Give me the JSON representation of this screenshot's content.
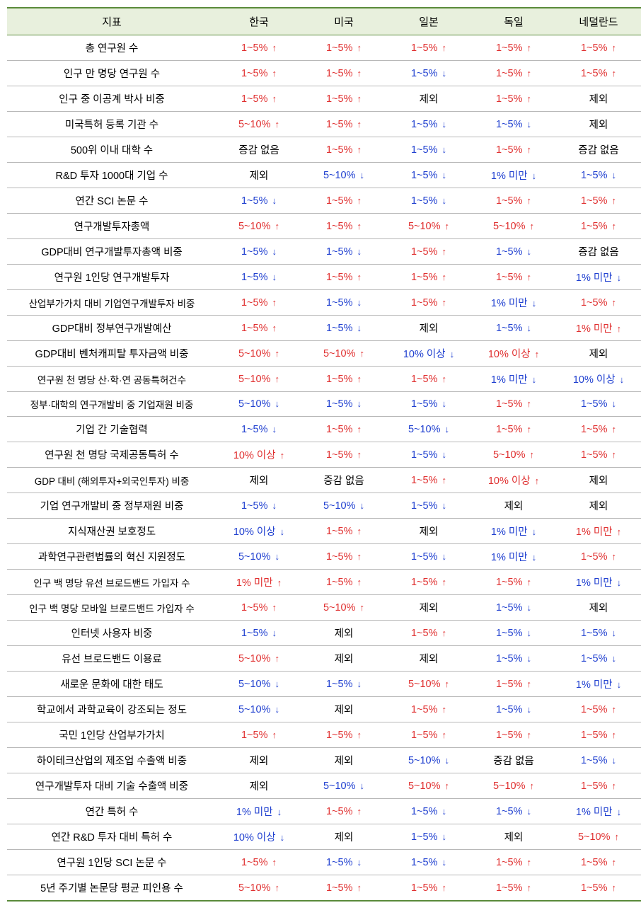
{
  "colors": {
    "header_bg": "#e8f0dd",
    "border_strong": "#5a8a3a",
    "border_row": "#b8b8b8",
    "up": "#e03030",
    "down": "#2040d0",
    "neutral": "#000000",
    "bg": "#ffffff"
  },
  "arrows": {
    "up": "↑",
    "down": "↓"
  },
  "headers": [
    "지표",
    "한국",
    "미국",
    "일본",
    "독일",
    "네덜란드"
  ],
  "rows": [
    {
      "label": "총 연구원 수",
      "cells": [
        {
          "t": "1~5%",
          "d": "up"
        },
        {
          "t": "1~5%",
          "d": "up"
        },
        {
          "t": "1~5%",
          "d": "up"
        },
        {
          "t": "1~5%",
          "d": "up"
        },
        {
          "t": "1~5%",
          "d": "up"
        }
      ]
    },
    {
      "label": "인구 만 명당 연구원 수",
      "cells": [
        {
          "t": "1~5%",
          "d": "up"
        },
        {
          "t": "1~5%",
          "d": "up"
        },
        {
          "t": "1~5%",
          "d": "down"
        },
        {
          "t": "1~5%",
          "d": "up"
        },
        {
          "t": "1~5%",
          "d": "up"
        }
      ]
    },
    {
      "label": "인구 중 이공계 박사 비중",
      "cells": [
        {
          "t": "1~5%",
          "d": "up"
        },
        {
          "t": "1~5%",
          "d": "up"
        },
        {
          "t": "제외",
          "d": "neutral"
        },
        {
          "t": "1~5%",
          "d": "up"
        },
        {
          "t": "제외",
          "d": "neutral"
        }
      ]
    },
    {
      "label": "미국특허 등록 기관 수",
      "cells": [
        {
          "t": "5~10%",
          "d": "up"
        },
        {
          "t": "1~5%",
          "d": "up"
        },
        {
          "t": "1~5%",
          "d": "down"
        },
        {
          "t": "1~5%",
          "d": "down"
        },
        {
          "t": "제외",
          "d": "neutral"
        }
      ]
    },
    {
      "label": "500위 이내 대학 수",
      "cells": [
        {
          "t": "증감 없음",
          "d": "neutral"
        },
        {
          "t": "1~5%",
          "d": "up"
        },
        {
          "t": "1~5%",
          "d": "down"
        },
        {
          "t": "1~5%",
          "d": "up"
        },
        {
          "t": "증감 없음",
          "d": "neutral"
        }
      ]
    },
    {
      "label": "R&D 투자 1000대 기업 수",
      "cells": [
        {
          "t": "제외",
          "d": "neutral"
        },
        {
          "t": "5~10%",
          "d": "down"
        },
        {
          "t": "1~5%",
          "d": "down"
        },
        {
          "t": "1% 미만",
          "d": "down"
        },
        {
          "t": "1~5%",
          "d": "down"
        }
      ]
    },
    {
      "label": "연간 SCI 논문 수",
      "cells": [
        {
          "t": "1~5%",
          "d": "down"
        },
        {
          "t": "1~5%",
          "d": "up"
        },
        {
          "t": "1~5%",
          "d": "down"
        },
        {
          "t": "1~5%",
          "d": "up"
        },
        {
          "t": "1~5%",
          "d": "up"
        }
      ]
    },
    {
      "label": "연구개발투자총액",
      "cells": [
        {
          "t": "5~10%",
          "d": "up"
        },
        {
          "t": "1~5%",
          "d": "up"
        },
        {
          "t": "5~10%",
          "d": "up"
        },
        {
          "t": "5~10%",
          "d": "up"
        },
        {
          "t": "1~5%",
          "d": "up"
        }
      ]
    },
    {
      "label": "GDP대비 연구개발투자총액 비중",
      "cells": [
        {
          "t": "1~5%",
          "d": "down"
        },
        {
          "t": "1~5%",
          "d": "down"
        },
        {
          "t": "1~5%",
          "d": "up"
        },
        {
          "t": "1~5%",
          "d": "down"
        },
        {
          "t": "증감 없음",
          "d": "neutral"
        }
      ]
    },
    {
      "label": "연구원 1인당 연구개발투자",
      "cells": [
        {
          "t": "1~5%",
          "d": "down"
        },
        {
          "t": "1~5%",
          "d": "up"
        },
        {
          "t": "1~5%",
          "d": "up"
        },
        {
          "t": "1~5%",
          "d": "up"
        },
        {
          "t": "1% 미만",
          "d": "down"
        }
      ]
    },
    {
      "label": "산업부가가치 대비 기업연구개발투자 비중",
      "small": true,
      "cells": [
        {
          "t": "1~5%",
          "d": "up"
        },
        {
          "t": "1~5%",
          "d": "down"
        },
        {
          "t": "1~5%",
          "d": "up"
        },
        {
          "t": "1% 미만",
          "d": "down"
        },
        {
          "t": "1~5%",
          "d": "up"
        }
      ]
    },
    {
      "label": "GDP대비 정부연구개발예산",
      "cells": [
        {
          "t": "1~5%",
          "d": "up"
        },
        {
          "t": "1~5%",
          "d": "down"
        },
        {
          "t": "제외",
          "d": "neutral"
        },
        {
          "t": "1~5%",
          "d": "down"
        },
        {
          "t": "1% 미만",
          "d": "up"
        }
      ]
    },
    {
      "label": "GDP대비 벤처캐피탈 투자금액 비중",
      "cells": [
        {
          "t": "5~10%",
          "d": "up"
        },
        {
          "t": "5~10%",
          "d": "up"
        },
        {
          "t": "10% 이상",
          "d": "down"
        },
        {
          "t": "10% 이상",
          "d": "up"
        },
        {
          "t": "제외",
          "d": "neutral"
        }
      ]
    },
    {
      "label": "연구원 천 명당 산·학·연 공동특허건수",
      "small": true,
      "cells": [
        {
          "t": "5~10%",
          "d": "up"
        },
        {
          "t": "1~5%",
          "d": "up"
        },
        {
          "t": "1~5%",
          "d": "up"
        },
        {
          "t": "1% 미만",
          "d": "down"
        },
        {
          "t": "10% 이상",
          "d": "down"
        }
      ]
    },
    {
      "label": "정부·대학의 연구개발비 중 기업재원 비중",
      "small": true,
      "cells": [
        {
          "t": "5~10%",
          "d": "down"
        },
        {
          "t": "1~5%",
          "d": "down"
        },
        {
          "t": "1~5%",
          "d": "down"
        },
        {
          "t": "1~5%",
          "d": "up"
        },
        {
          "t": "1~5%",
          "d": "down"
        }
      ]
    },
    {
      "label": "기업 간 기술협력",
      "cells": [
        {
          "t": "1~5%",
          "d": "down"
        },
        {
          "t": "1~5%",
          "d": "up"
        },
        {
          "t": "5~10%",
          "d": "down"
        },
        {
          "t": "1~5%",
          "d": "up"
        },
        {
          "t": "1~5%",
          "d": "up"
        }
      ]
    },
    {
      "label": "연구원 천 명당 국제공동특허 수",
      "cells": [
        {
          "t": "10% 이상",
          "d": "up"
        },
        {
          "t": "1~5%",
          "d": "up"
        },
        {
          "t": "1~5%",
          "d": "down"
        },
        {
          "t": "5~10%",
          "d": "up"
        },
        {
          "t": "1~5%",
          "d": "up"
        }
      ]
    },
    {
      "label": "GDP 대비 (해외투자+외국인투자) 비중",
      "small": true,
      "cells": [
        {
          "t": "제외",
          "d": "neutral"
        },
        {
          "t": "증감 없음",
          "d": "neutral"
        },
        {
          "t": "1~5%",
          "d": "up"
        },
        {
          "t": "10% 이상",
          "d": "up"
        },
        {
          "t": "제외",
          "d": "neutral"
        }
      ]
    },
    {
      "label": "기업 연구개발비 중 정부재원 비중",
      "cells": [
        {
          "t": "1~5%",
          "d": "down"
        },
        {
          "t": "5~10%",
          "d": "down"
        },
        {
          "t": "1~5%",
          "d": "down"
        },
        {
          "t": "제외",
          "d": "neutral"
        },
        {
          "t": "제외",
          "d": "neutral"
        }
      ]
    },
    {
      "label": "지식재산권 보호정도",
      "cells": [
        {
          "t": "10% 이상",
          "d": "down"
        },
        {
          "t": "1~5%",
          "d": "up"
        },
        {
          "t": "제외",
          "d": "neutral"
        },
        {
          "t": "1% 미만",
          "d": "down"
        },
        {
          "t": "1% 미만",
          "d": "up"
        }
      ]
    },
    {
      "label": "과학연구관련법률의 혁신 지원정도",
      "cells": [
        {
          "t": "5~10%",
          "d": "down"
        },
        {
          "t": "1~5%",
          "d": "up"
        },
        {
          "t": "1~5%",
          "d": "down"
        },
        {
          "t": "1% 미만",
          "d": "down"
        },
        {
          "t": "1~5%",
          "d": "up"
        }
      ]
    },
    {
      "label": "인구 백 명당 유선 브로드밴드 가입자 수",
      "small": true,
      "cells": [
        {
          "t": "1% 미만",
          "d": "up"
        },
        {
          "t": "1~5%",
          "d": "up"
        },
        {
          "t": "1~5%",
          "d": "up"
        },
        {
          "t": "1~5%",
          "d": "up"
        },
        {
          "t": "1% 미만",
          "d": "down"
        }
      ]
    },
    {
      "label": "인구 백 명당 모바일 브로드밴드 가입자 수",
      "small": true,
      "cells": [
        {
          "t": "1~5%",
          "d": "up"
        },
        {
          "t": "5~10%",
          "d": "up"
        },
        {
          "t": "제외",
          "d": "neutral"
        },
        {
          "t": "1~5%",
          "d": "down"
        },
        {
          "t": "제외",
          "d": "neutral"
        }
      ]
    },
    {
      "label": "인터넷 사용자 비중",
      "cells": [
        {
          "t": "1~5%",
          "d": "down"
        },
        {
          "t": "제외",
          "d": "neutral"
        },
        {
          "t": "1~5%",
          "d": "up"
        },
        {
          "t": "1~5%",
          "d": "down"
        },
        {
          "t": "1~5%",
          "d": "down"
        }
      ]
    },
    {
      "label": "유선 브로드밴드 이용료",
      "cells": [
        {
          "t": "5~10%",
          "d": "up"
        },
        {
          "t": "제외",
          "d": "neutral"
        },
        {
          "t": "제외",
          "d": "neutral"
        },
        {
          "t": "1~5%",
          "d": "down"
        },
        {
          "t": "1~5%",
          "d": "down"
        }
      ]
    },
    {
      "label": "새로운 문화에 대한 태도",
      "cells": [
        {
          "t": "5~10%",
          "d": "down"
        },
        {
          "t": "1~5%",
          "d": "down"
        },
        {
          "t": "5~10%",
          "d": "up"
        },
        {
          "t": "1~5%",
          "d": "up"
        },
        {
          "t": "1% 미만",
          "d": "down"
        }
      ]
    },
    {
      "label": "학교에서 과학교육이 강조되는 정도",
      "cells": [
        {
          "t": "5~10%",
          "d": "down"
        },
        {
          "t": "제외",
          "d": "neutral"
        },
        {
          "t": "1~5%",
          "d": "up"
        },
        {
          "t": "1~5%",
          "d": "down"
        },
        {
          "t": "1~5%",
          "d": "up"
        }
      ]
    },
    {
      "label": "국민 1인당 산업부가가치",
      "cells": [
        {
          "t": "1~5%",
          "d": "up"
        },
        {
          "t": "1~5%",
          "d": "up"
        },
        {
          "t": "1~5%",
          "d": "up"
        },
        {
          "t": "1~5%",
          "d": "up"
        },
        {
          "t": "1~5%",
          "d": "up"
        }
      ]
    },
    {
      "label": "하이테크산업의 제조업 수출액 비중",
      "cells": [
        {
          "t": "제외",
          "d": "neutral"
        },
        {
          "t": "제외",
          "d": "neutral"
        },
        {
          "t": "5~10%",
          "d": "down"
        },
        {
          "t": "증감 없음",
          "d": "neutral"
        },
        {
          "t": "1~5%",
          "d": "down"
        }
      ]
    },
    {
      "label": "연구개발투자 대비 기술 수출액 비중",
      "cells": [
        {
          "t": "제외",
          "d": "neutral"
        },
        {
          "t": "5~10%",
          "d": "down"
        },
        {
          "t": "5~10%",
          "d": "up"
        },
        {
          "t": "5~10%",
          "d": "up"
        },
        {
          "t": "1~5%",
          "d": "up"
        }
      ]
    },
    {
      "label": "연간 특허 수",
      "cells": [
        {
          "t": "1% 미만",
          "d": "down"
        },
        {
          "t": "1~5%",
          "d": "up"
        },
        {
          "t": "1~5%",
          "d": "down"
        },
        {
          "t": "1~5%",
          "d": "down"
        },
        {
          "t": "1% 미만",
          "d": "down"
        }
      ]
    },
    {
      "label": "연간 R&D 투자 대비 특허 수",
      "cells": [
        {
          "t": "10% 이상",
          "d": "down"
        },
        {
          "t": "제외",
          "d": "neutral"
        },
        {
          "t": "1~5%",
          "d": "down"
        },
        {
          "t": "제외",
          "d": "neutral"
        },
        {
          "t": "5~10%",
          "d": "up"
        }
      ]
    },
    {
      "label": "연구원 1인당 SCI 논문 수",
      "cells": [
        {
          "t": "1~5%",
          "d": "up"
        },
        {
          "t": "1~5%",
          "d": "down"
        },
        {
          "t": "1~5%",
          "d": "down"
        },
        {
          "t": "1~5%",
          "d": "up"
        },
        {
          "t": "1~5%",
          "d": "up"
        }
      ]
    },
    {
      "label": "5년 주기별 논문당 평균 피인용 수",
      "cells": [
        {
          "t": "5~10%",
          "d": "up"
        },
        {
          "t": "1~5%",
          "d": "up"
        },
        {
          "t": "1~5%",
          "d": "up"
        },
        {
          "t": "1~5%",
          "d": "up"
        },
        {
          "t": "1~5%",
          "d": "up"
        }
      ]
    }
  ]
}
